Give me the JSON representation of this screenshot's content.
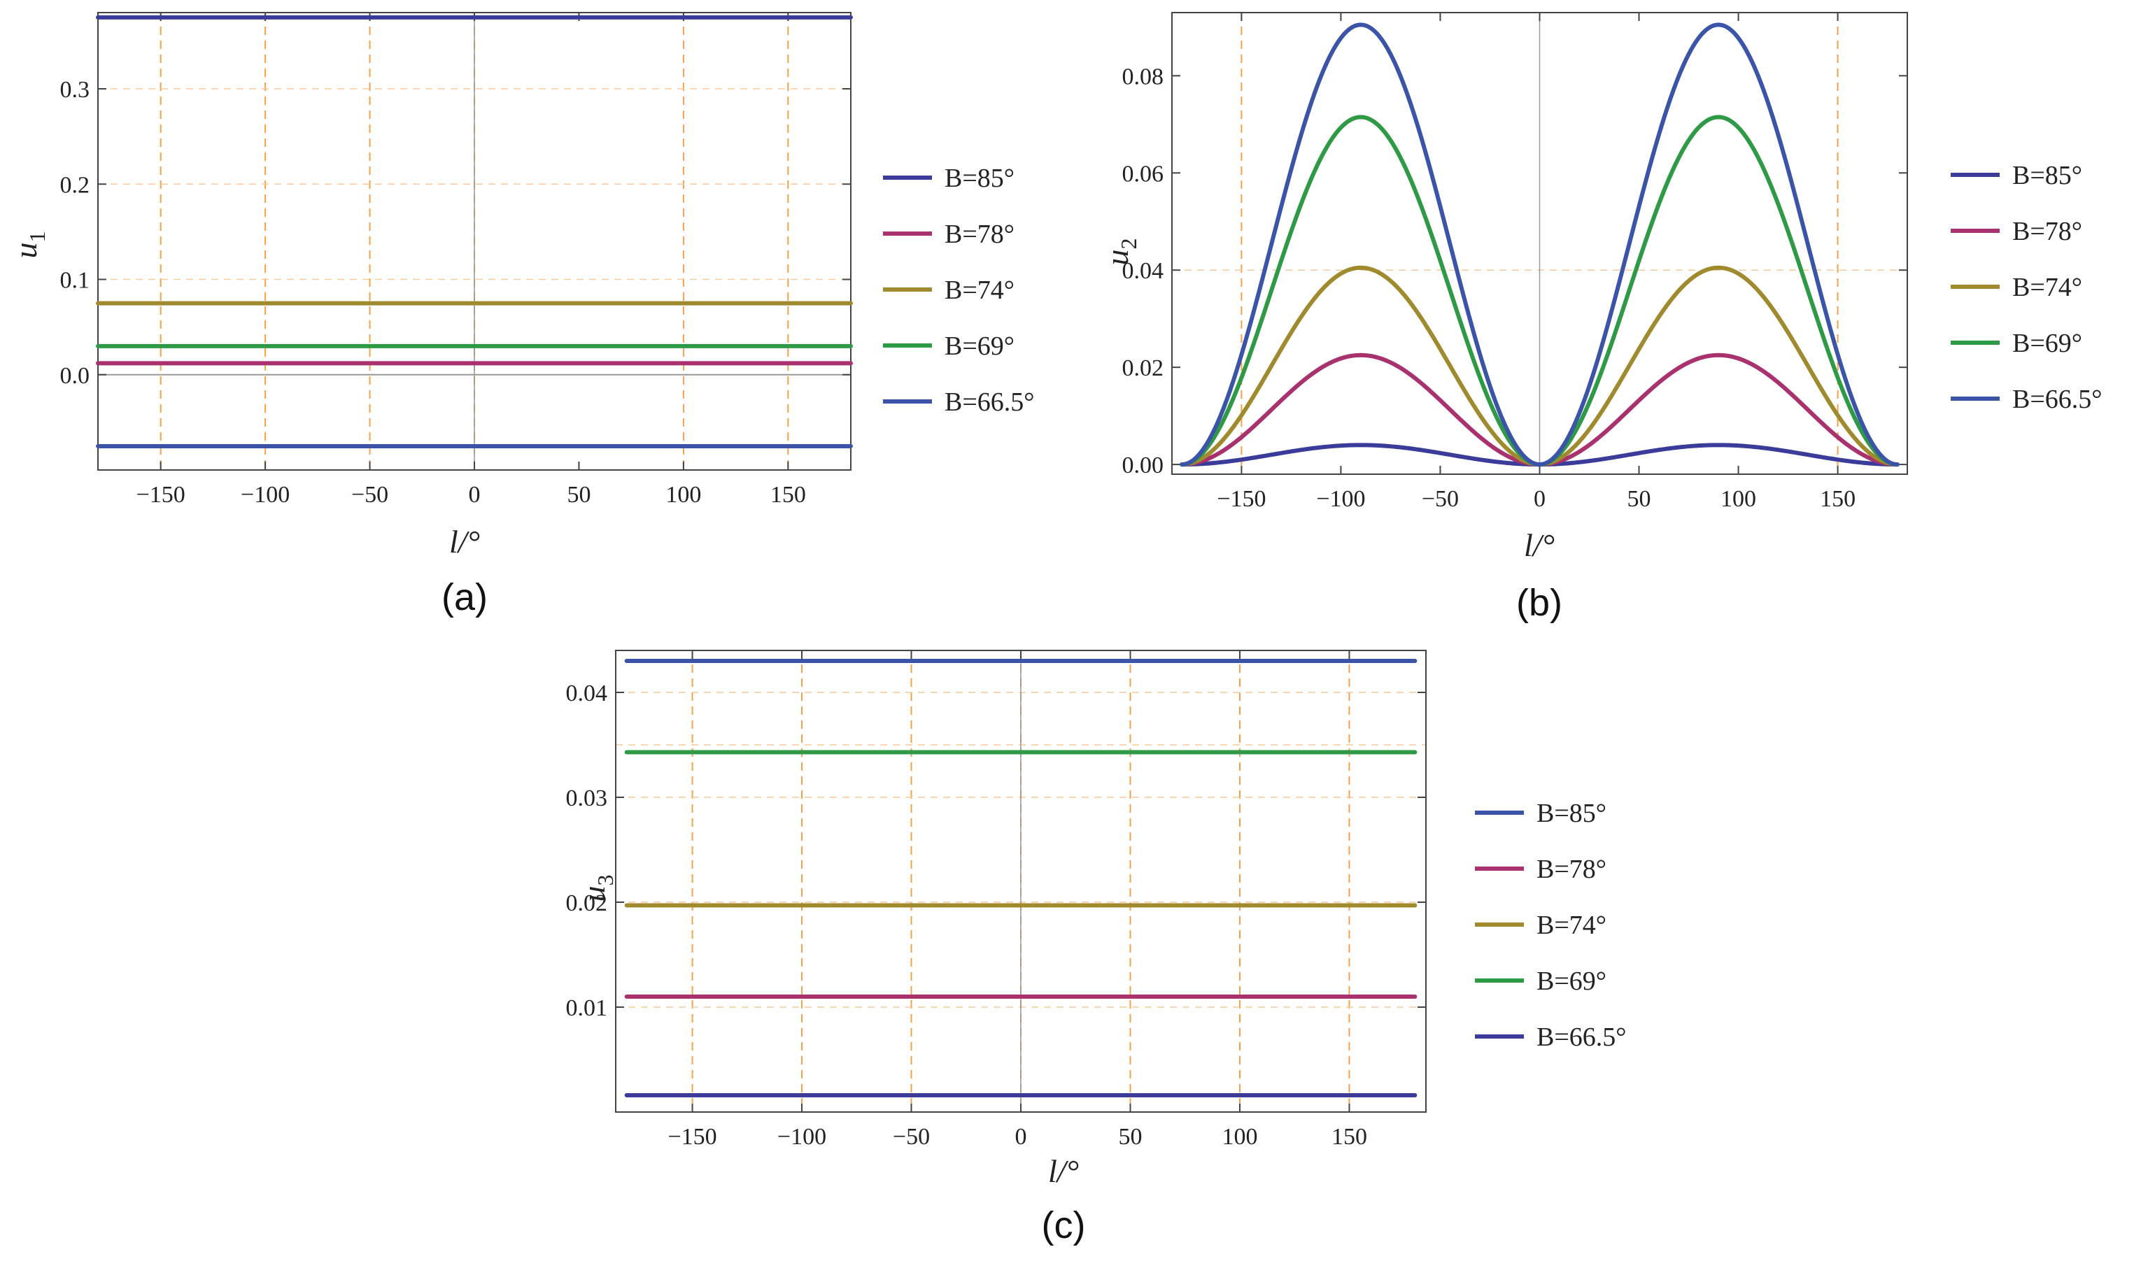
{
  "chart_data": [
    {
      "type": "line",
      "panel_label": "(a)",
      "xlabel": "l/°",
      "ylabel": "u",
      "ylabel_sub": "1",
      "xlim": [
        -180,
        180
      ],
      "ylim": [
        -0.1,
        0.38
      ],
      "xticks": [
        -150,
        -100,
        -50,
        0,
        50,
        100,
        150
      ],
      "xtick_labels": [
        "−150",
        "−100",
        "−50",
        "0",
        "50",
        "100",
        "150"
      ],
      "yticks": [
        0.0,
        0.1,
        0.2,
        0.3
      ],
      "ytick_labels": [
        "0.0",
        "0.1",
        "0.2",
        "0.3"
      ],
      "xgrid": [
        -150,
        -100,
        -50,
        0,
        100,
        150
      ],
      "ygrid": [
        0.1,
        0.2,
        0.3
      ],
      "zero_line": true,
      "legend_position": "right",
      "series": [
        {
          "name": "B=85°",
          "color": "#3b3b9a",
          "shape": "constant",
          "value": 0.375
        },
        {
          "name": "B=78°",
          "color": "#a8316e",
          "shape": "constant",
          "value": 0.012
        },
        {
          "name": "B=74°",
          "color": "#a08a2e",
          "shape": "constant",
          "value": 0.075
        },
        {
          "name": "B=69°",
          "color": "#2f9a45",
          "shape": "constant",
          "value": 0.03
        },
        {
          "name": "B=66.5°",
          "color": "#3b54a8",
          "shape": "constant",
          "value": -0.075
        }
      ]
    },
    {
      "type": "line",
      "panel_label": "(b)",
      "xlabel": "l/°",
      "ylabel": "u",
      "ylabel_sub": "2",
      "xlim": [
        -185,
        185
      ],
      "ylim": [
        -0.002,
        0.093
      ],
      "xticks": [
        -150,
        -100,
        -50,
        0,
        50,
        100,
        150
      ],
      "xtick_labels": [
        "−150",
        "−100",
        "−50",
        "0",
        "50",
        "100",
        "150"
      ],
      "yticks": [
        0.0,
        0.02,
        0.04,
        0.06,
        0.08
      ],
      "ytick_labels": [
        "0.00",
        "0.02",
        "0.04",
        "0.06",
        "0.08"
      ],
      "xgrid": [
        -150,
        150
      ],
      "ygrid": [
        0.04
      ],
      "zero_line": false,
      "legend_position": "right",
      "series": [
        {
          "name": "B=85°",
          "color": "#3b3b9a",
          "shape": "sin2",
          "amplitude": 0.004
        },
        {
          "name": "B=78°",
          "color": "#a8316e",
          "shape": "sin2",
          "amplitude": 0.0225
        },
        {
          "name": "B=74°",
          "color": "#a08a2e",
          "shape": "sin2",
          "amplitude": 0.0405
        },
        {
          "name": "B=69°",
          "color": "#2f9a45",
          "shape": "sin2",
          "amplitude": 0.0715
        },
        {
          "name": "B=66.5°",
          "color": "#3b54a8",
          "shape": "sin2",
          "amplitude": 0.0905
        }
      ]
    },
    {
      "type": "line",
      "panel_label": "(c)",
      "xlabel": "l/°",
      "ylabel": "u",
      "ylabel_sub": "3",
      "xlim": [
        -185,
        185
      ],
      "ylim": [
        0.0,
        0.044
      ],
      "xticks": [
        -150,
        -100,
        -50,
        0,
        50,
        100,
        150
      ],
      "xtick_labels": [
        "−150",
        "−100",
        "−50",
        "0",
        "50",
        "100",
        "150"
      ],
      "yticks": [
        0.01,
        0.02,
        0.03,
        0.04
      ],
      "ytick_labels": [
        "0.01",
        "0.02",
        "0.03",
        "0.04"
      ],
      "xgrid": [
        -150,
        -100,
        -50,
        0,
        50,
        100,
        150
      ],
      "ygrid": [
        0.01,
        0.02,
        0.03,
        0.035,
        0.04
      ],
      "zero_line": false,
      "legend_position": "right",
      "series": [
        {
          "name": "B=85°",
          "color": "#3b54a8",
          "shape": "constant",
          "value": 0.043
        },
        {
          "name": "B=78°",
          "color": "#a8316e",
          "shape": "constant",
          "value": 0.011
        },
        {
          "name": "B=74°",
          "color": "#a08a2e",
          "shape": "constant",
          "value": 0.0197
        },
        {
          "name": "B=69°",
          "color": "#2f9a45",
          "shape": "constant",
          "value": 0.0343
        },
        {
          "name": "B=66.5°",
          "color": "#3b3b9a",
          "shape": "constant",
          "value": 0.0016
        }
      ]
    }
  ]
}
